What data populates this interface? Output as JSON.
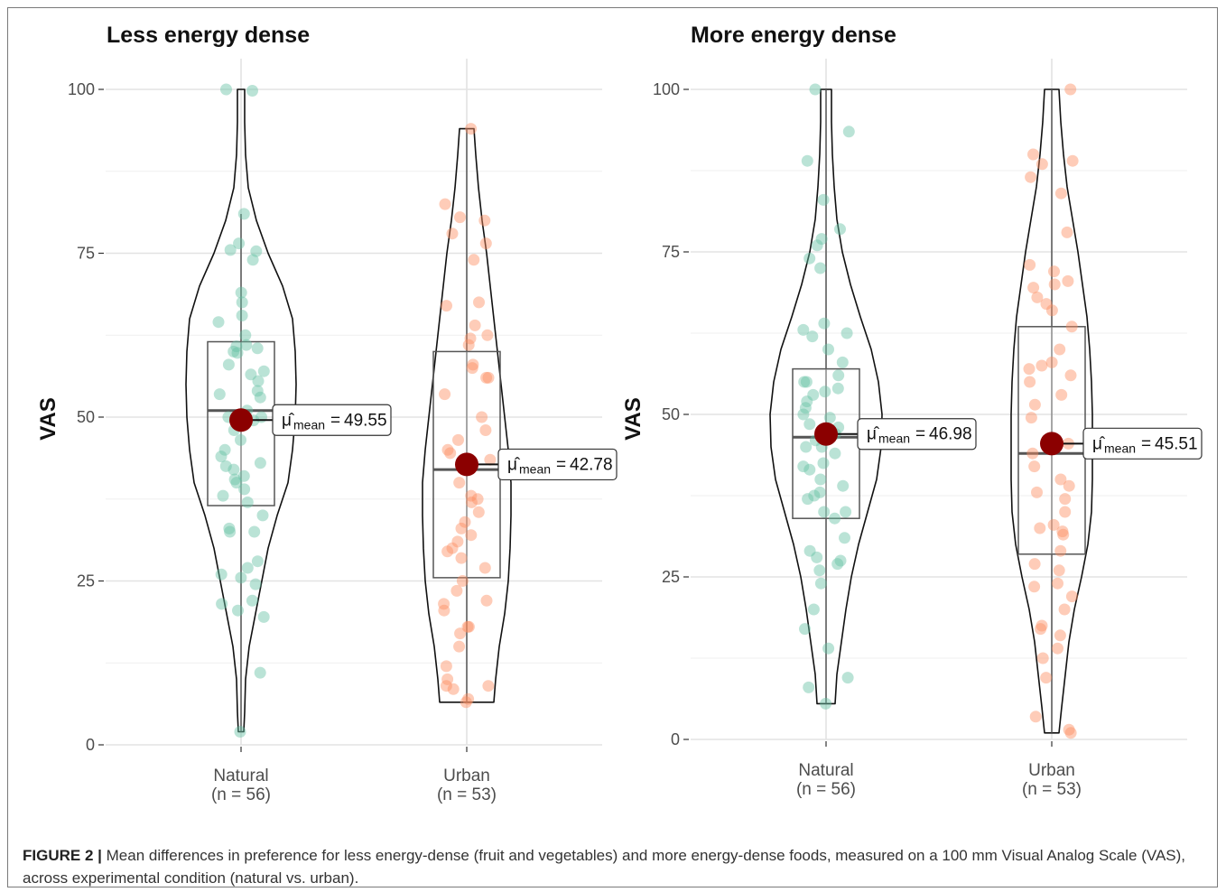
{
  "caption": {
    "label": "FIGURE 2 |",
    "text": "Mean differences in preference for less energy-dense (fruit and vegetables) and more energy-dense foods, measured on a 100 mm Visual Analog Scale (VAS), across experimental condition (natural vs. urban)."
  },
  "chart_data": [
    {
      "type": "violin",
      "title": "Less energy dense",
      "ylabel": "VAS",
      "ylim": [
        0,
        100
      ],
      "yticks": [
        "0",
        "25",
        "50",
        "75",
        "100"
      ],
      "grid": true,
      "categories": [
        {
          "name": "Natural",
          "n_label": "(n = 56)",
          "color": "#66c2a5",
          "min": 2,
          "max": 100,
          "q1": 36.5,
          "median": 51,
          "q3": 61.5,
          "whisker_low": 2,
          "whisker_high": 81,
          "mean": 49.55,
          "mean_label": "49.55",
          "mean_symbol": "μ̂",
          "mean_sub": "mean",
          "violin": [
            [
              2,
              3
            ],
            [
              5,
              4
            ],
            [
              10,
              5
            ],
            [
              15,
              9
            ],
            [
              20,
              16
            ],
            [
              25,
              23
            ],
            [
              30,
              30
            ],
            [
              35,
              40
            ],
            [
              40,
              52
            ],
            [
              45,
              57
            ],
            [
              50,
              60
            ],
            [
              55,
              61
            ],
            [
              60,
              60
            ],
            [
              65,
              57
            ],
            [
              70,
              46
            ],
            [
              75,
              30
            ],
            [
              80,
              17
            ],
            [
              85,
              8
            ],
            [
              90,
              5
            ],
            [
              95,
              4
            ],
            [
              100,
              4
            ]
          ],
          "points": [
            100,
            99.8,
            81,
            76.5,
            75.5,
            75.3,
            74,
            69,
            67.5,
            65.5,
            64.5,
            62.5,
            61,
            60.8,
            60.5,
            60,
            59.8,
            58,
            57,
            56.5,
            55.5,
            54,
            53.5,
            51,
            50,
            50,
            49.5,
            45,
            43,
            42.5,
            42,
            41,
            40.5,
            40,
            39,
            38,
            37,
            35,
            33,
            32.5,
            32.5,
            28,
            27,
            26,
            25.5,
            24.5,
            22,
            21.5,
            20.5,
            19.5,
            11,
            2,
            48,
            46.5,
            44,
            53
          ]
        },
        {
          "name": "Urban",
          "n_label": "(n = 53)",
          "color": "#fc8d62",
          "min": 6.5,
          "max": 94,
          "q1": 25.5,
          "median": 42,
          "q3": 60,
          "whisker_low": 6.5,
          "whisker_high": 94,
          "mean": 42.78,
          "mean_label": "42.78",
          "mean_symbol": "μ̂",
          "mean_sub": "mean",
          "violin": [
            [
              6.5,
              30
            ],
            [
              10,
              32
            ],
            [
              15,
              36
            ],
            [
              20,
              42
            ],
            [
              25,
              46
            ],
            [
              30,
              48
            ],
            [
              35,
              49
            ],
            [
              40,
              49
            ],
            [
              45,
              46
            ],
            [
              50,
              42
            ],
            [
              55,
              38
            ],
            [
              60,
              34
            ],
            [
              65,
              30
            ],
            [
              70,
              26
            ],
            [
              75,
              22
            ],
            [
              80,
              17
            ],
            [
              85,
              13
            ],
            [
              90,
              10
            ],
            [
              94,
              8
            ]
          ],
          "points": [
            94,
            82.5,
            80.5,
            80,
            78,
            76.5,
            74,
            67.5,
            67,
            64,
            62.5,
            62,
            61,
            58,
            57.5,
            56,
            56,
            53.5,
            50,
            48,
            46.5,
            44.5,
            43.5,
            38,
            37.5,
            37,
            35.5,
            32,
            31,
            30,
            29.5,
            28.5,
            27,
            25,
            23.5,
            21.5,
            20.5,
            18,
            18,
            17,
            15,
            12,
            10,
            9,
            9,
            8.5,
            7,
            6.5,
            40,
            45,
            33,
            22,
            34
          ]
        }
      ]
    },
    {
      "type": "violin",
      "title": "More energy dense",
      "ylabel": "VAS",
      "ylim": [
        0,
        100
      ],
      "yticks": [
        "0",
        "25",
        "50",
        "75",
        "100"
      ],
      "grid": true,
      "categories": [
        {
          "name": "Natural",
          "n_label": "(n = 56)",
          "color": "#66c2a5",
          "min": 5.5,
          "max": 100,
          "q1": 34,
          "median": 46.5,
          "q3": 57,
          "whisker_low": 5.5,
          "whisker_high": 100,
          "mean": 46.98,
          "mean_label": "46.98",
          "mean_symbol": "μ̂",
          "mean_sub": "mean",
          "violin": [
            [
              5.5,
              10
            ],
            [
              10,
              12
            ],
            [
              15,
              17
            ],
            [
              20,
              22
            ],
            [
              25,
              28
            ],
            [
              30,
              36
            ],
            [
              35,
              46
            ],
            [
              40,
              56
            ],
            [
              45,
              61
            ],
            [
              50,
              62
            ],
            [
              55,
              58
            ],
            [
              60,
              50
            ],
            [
              65,
              38
            ],
            [
              70,
              27
            ],
            [
              75,
              18
            ],
            [
              80,
              12
            ],
            [
              85,
              9
            ],
            [
              90,
              7
            ],
            [
              95,
              6
            ],
            [
              100,
              6
            ]
          ],
          "points": [
            100,
            93.5,
            89,
            83,
            78.5,
            77,
            76,
            74,
            72.5,
            64,
            63,
            62,
            60,
            58,
            56,
            55,
            55,
            54,
            53.5,
            53,
            52,
            51,
            50,
            49.5,
            48.5,
            48,
            47,
            46,
            45,
            44,
            42.5,
            42,
            41.5,
            40,
            39,
            38,
            37.5,
            37,
            35,
            35,
            34,
            31,
            29,
            28,
            27.5,
            27,
            26,
            24,
            20,
            17,
            14,
            9.5,
            8,
            5.5,
            62.5,
            45
          ]
        },
        {
          "name": "Urban",
          "n_label": "(n = 53)",
          "color": "#fc8d62",
          "min": 1,
          "max": 100,
          "q1": 28.5,
          "median": 44,
          "q3": 63.5,
          "whisker_low": 1,
          "whisker_high": 100,
          "mean": 45.51,
          "mean_label": "45.51",
          "mean_symbol": "μ̂",
          "mean_sub": "mean",
          "violin": [
            [
              1,
              8
            ],
            [
              5,
              11
            ],
            [
              10,
              15
            ],
            [
              15,
              19
            ],
            [
              20,
              25
            ],
            [
              25,
              33
            ],
            [
              30,
              40
            ],
            [
              35,
              44
            ],
            [
              40,
              45
            ],
            [
              45,
              45
            ],
            [
              50,
              45
            ],
            [
              55,
              44
            ],
            [
              60,
              42
            ],
            [
              65,
              39
            ],
            [
              70,
              34
            ],
            [
              75,
              29
            ],
            [
              80,
              23
            ],
            [
              85,
              17
            ],
            [
              90,
              13
            ],
            [
              95,
              10
            ],
            [
              100,
              8
            ]
          ],
          "points": [
            100,
            90,
            89,
            88.5,
            86.5,
            84,
            78,
            73,
            72,
            70.5,
            70,
            69.5,
            67,
            66,
            63.5,
            60,
            58,
            57.5,
            57,
            55,
            53,
            51.5,
            49.5,
            45.5,
            44,
            42,
            40,
            39,
            38,
            37,
            35,
            33,
            32.5,
            32,
            31.5,
            29,
            27,
            26,
            24,
            23.5,
            22,
            20,
            17.5,
            17,
            16,
            14,
            12.5,
            9.5,
            3.5,
            1.5,
            1,
            56,
            68
          ]
        }
      ]
    }
  ]
}
